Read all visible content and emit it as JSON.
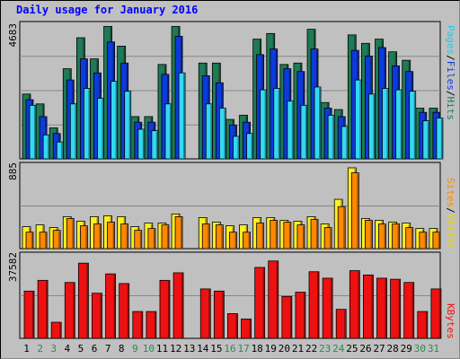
{
  "title": "Daily usage for January 2016",
  "colors": {
    "hits": "#1f7a55",
    "files": "#0b3bdc",
    "pages": "#33d9f2",
    "visits": "#ffee22",
    "sites": "#ff8800",
    "kbytes": "#ee1111",
    "background": "#c0c0c0",
    "plot_background": "#c0c0c0",
    "weekday_label": "#000000",
    "weekend_label": "#2a8a55",
    "title": "#0000ff"
  },
  "panels": {
    "top": {
      "ymax_label": "4683",
      "legend": [
        {
          "text": "Pages",
          "color": "#2bc6e6"
        },
        {
          "text": "/",
          "color": "#000000"
        },
        {
          "text": "Files",
          "color": "#0b3bdc"
        },
        {
          "text": "/",
          "color": "#000000"
        },
        {
          "text": "Hits",
          "color": "#1f7a55"
        }
      ]
    },
    "middle": {
      "ymax_label": "885",
      "legend": [
        {
          "text": "Sites",
          "color": "#ff8800"
        },
        {
          "text": "/",
          "color": "#000000"
        },
        {
          "text": "Visits",
          "color": "#e8d800"
        }
      ]
    },
    "bottom": {
      "ymax_label": "37582",
      "legend": [
        {
          "text": "KBytes",
          "color": "#ee1111"
        }
      ]
    }
  },
  "chart_data": [
    {
      "type": "bar",
      "name": "hits-files-pages",
      "ylim": [
        0,
        4683
      ],
      "categories": [
        "1",
        "2",
        "3",
        "4",
        "5",
        "6",
        "7",
        "8",
        "9",
        "10",
        "11",
        "12",
        "13",
        "14",
        "15",
        "16",
        "17",
        "18",
        "19",
        "20",
        "21",
        "22",
        "23",
        "24",
        "25",
        "26",
        "27",
        "28",
        "29",
        "30",
        "31"
      ],
      "weekend_days": [
        2,
        3,
        9,
        10,
        16,
        17,
        23,
        24,
        30,
        31
      ],
      "series": [
        {
          "name": "Hits",
          "values": [
            2300,
            1950,
            1100,
            3200,
            4300,
            3550,
            4700,
            4000,
            1500,
            1500,
            3350,
            4700,
            0,
            3400,
            3400,
            1400,
            1550,
            4250,
            4450,
            3350,
            3400,
            4600,
            2000,
            1750,
            4400,
            4100,
            4250,
            3800,
            3500,
            1800,
            1800
          ]
        },
        {
          "name": "Files",
          "values": [
            2100,
            1500,
            900,
            2800,
            3550,
            3050,
            4150,
            3400,
            1300,
            1300,
            3000,
            4350,
            0,
            2950,
            2700,
            1200,
            1300,
            3700,
            3900,
            3200,
            3100,
            3900,
            1800,
            1500,
            3850,
            3650,
            3950,
            3300,
            3100,
            1650,
            1650
          ]
        },
        {
          "name": "Pages",
          "values": [
            1900,
            850,
            600,
            1950,
            2500,
            2150,
            2750,
            2400,
            1050,
            1000,
            1950,
            3050,
            0,
            1950,
            1800,
            800,
            900,
            2450,
            2500,
            2050,
            1900,
            2550,
            1550,
            1150,
            2800,
            2300,
            2500,
            2450,
            2400,
            1350,
            1450
          ]
        }
      ]
    },
    {
      "type": "bar",
      "name": "visits-sites",
      "ylim": [
        0,
        885
      ],
      "categories": [
        "1",
        "2",
        "3",
        "4",
        "5",
        "6",
        "7",
        "8",
        "9",
        "10",
        "11",
        "12",
        "13",
        "14",
        "15",
        "16",
        "17",
        "18",
        "19",
        "20",
        "21",
        "22",
        "23",
        "24",
        "25",
        "26",
        "27",
        "28",
        "29",
        "30",
        "31"
      ],
      "weekend_days": [
        2,
        3,
        9,
        10,
        16,
        17,
        23,
        24,
        30,
        31
      ],
      "series": [
        {
          "name": "Visits",
          "values": [
            240,
            260,
            230,
            350,
            300,
            350,
            360,
            350,
            240,
            280,
            280,
            380,
            0,
            340,
            290,
            250,
            260,
            340,
            340,
            310,
            300,
            350,
            270,
            540,
            885,
            330,
            310,
            290,
            280,
            220,
            220
          ]
        },
        {
          "name": "Sites",
          "values": [
            180,
            180,
            200,
            330,
            250,
            270,
            290,
            270,
            200,
            220,
            260,
            350,
            0,
            270,
            260,
            180,
            180,
            280,
            310,
            290,
            260,
            320,
            230,
            460,
            830,
            310,
            270,
            270,
            230,
            180,
            180
          ]
        }
      ]
    },
    {
      "type": "bar",
      "name": "kbytes",
      "ylim": [
        0,
        37582
      ],
      "categories": [
        "1",
        "2",
        "3",
        "4",
        "5",
        "6",
        "7",
        "8",
        "9",
        "10",
        "11",
        "12",
        "13",
        "14",
        "15",
        "16",
        "17",
        "18",
        "19",
        "20",
        "21",
        "22",
        "23",
        "24",
        "25",
        "26",
        "27",
        "28",
        "29",
        "30",
        "31"
      ],
      "weekend_days": [
        2,
        3,
        9,
        10,
        16,
        17,
        23,
        24,
        30,
        31
      ],
      "series": [
        {
          "name": "KBytes",
          "values": [
            22000,
            27000,
            7500,
            26000,
            35000,
            21000,
            30000,
            25500,
            12500,
            12500,
            27000,
            30500,
            0,
            23000,
            22000,
            11500,
            9000,
            33000,
            36000,
            19500,
            21500,
            31000,
            28000,
            13500,
            31500,
            29500,
            28000,
            27500,
            26000,
            12500,
            23000
          ]
        }
      ]
    }
  ]
}
